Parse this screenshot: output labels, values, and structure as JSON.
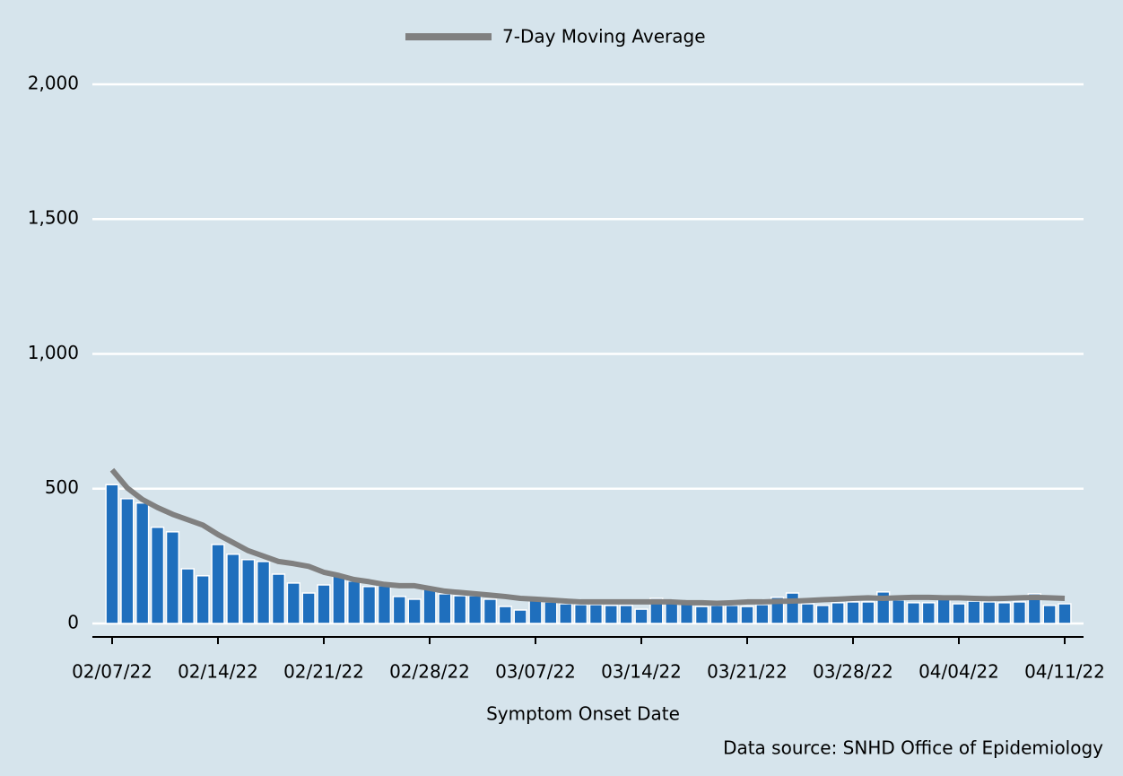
{
  "chart_data": {
    "type": "bar",
    "legend": "top",
    "grid": true,
    "x_label": "Symptom Onset Date",
    "source": "Data source: SNHD Office of Epidemiology",
    "categories": [
      "02/07/22",
      null,
      null,
      null,
      null,
      null,
      null,
      "02/14/22",
      null,
      null,
      null,
      null,
      null,
      null,
      "02/21/22",
      null,
      null,
      null,
      null,
      null,
      null,
      "02/28/22",
      null,
      null,
      null,
      null,
      null,
      null,
      "03/07/22",
      null,
      null,
      null,
      null,
      null,
      null,
      "03/14/22",
      null,
      null,
      null,
      null,
      null,
      null,
      "03/21/22",
      null,
      null,
      null,
      null,
      null,
      null,
      "03/28/22",
      null,
      null,
      null,
      null,
      null,
      null,
      "04/04/22",
      null,
      null,
      null,
      null,
      null,
      null,
      "04/11/22"
    ],
    "color": "#1f6fbd",
    "values": [
      515,
      463,
      447,
      357,
      340,
      203,
      177,
      293,
      257,
      237,
      230,
      183,
      150,
      113,
      143,
      177,
      157,
      137,
      140,
      100,
      90,
      130,
      110,
      103,
      103,
      90,
      63,
      50,
      87,
      80,
      73,
      70,
      70,
      67,
      67,
      53,
      93,
      77,
      73,
      63,
      67,
      67,
      63,
      70,
      97,
      113,
      73,
      67,
      77,
      80,
      80,
      117,
      87,
      77,
      77,
      90,
      73,
      83,
      80,
      77,
      80,
      110,
      67,
      73
    ],
    "series": [
      {
        "name": "7-Day Moving Average",
        "type": "line",
        "color": "#808080",
        "values": [
          570,
          503,
          460,
          430,
          405,
          385,
          365,
          330,
          300,
          270,
          250,
          230,
          222,
          212,
          190,
          178,
          163,
          155,
          145,
          140,
          140,
          130,
          120,
          115,
          110,
          105,
          100,
          93,
          90,
          87,
          83,
          80,
          80,
          80,
          80,
          80,
          80,
          80,
          77,
          77,
          75,
          77,
          80,
          80,
          82,
          83,
          85,
          88,
          90,
          93,
          95,
          93,
          95,
          97,
          97,
          95,
          95,
          93,
          92,
          93,
          95,
          97,
          95,
          93
        ]
      }
    ],
    "ylim": [
      -50,
      2000
    ],
    "yticks": [
      0,
      500,
      {
        "value": 1000,
        "label": "1,000"
      },
      {
        "value": 1500,
        "label": "1,500"
      },
      {
        "value": 2000,
        "label": "2,000"
      }
    ]
  }
}
